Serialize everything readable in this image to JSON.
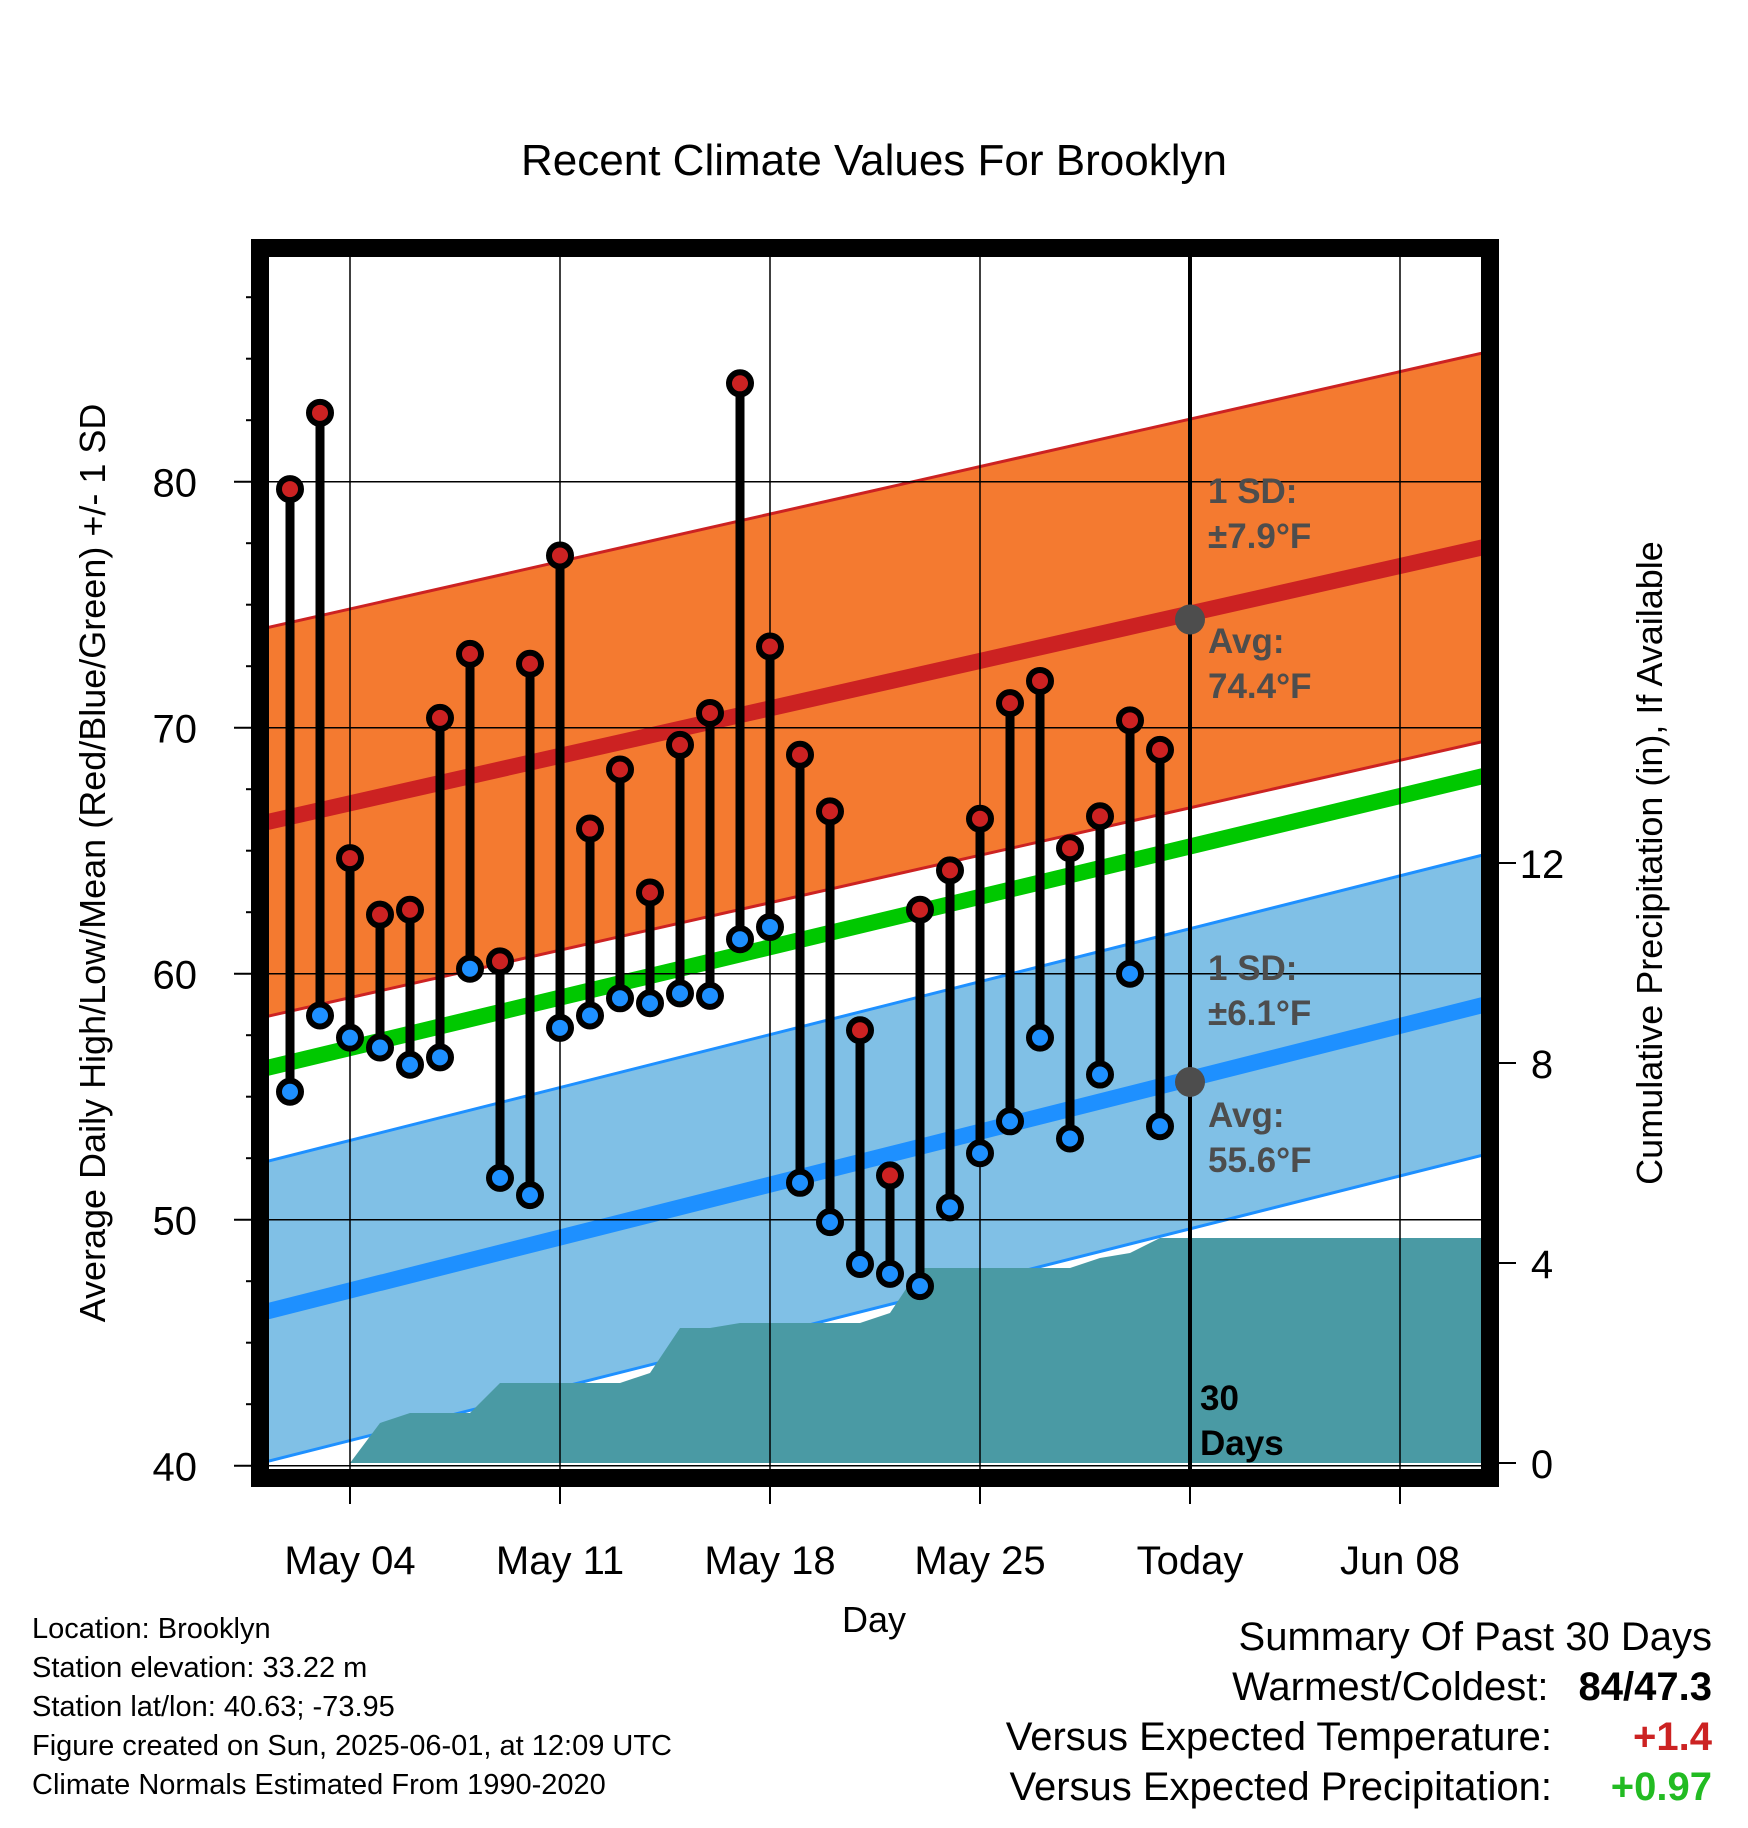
{
  "chart_data": {
    "type": "line",
    "title": "Recent Climate Values For Brooklyn",
    "xlabel": "Day",
    "ylabel": "Average Daily High/Low/Mean (Red/Blue/Green) +/- 1 SD",
    "y2label": "Cumulative Precipitation (in), If Available",
    "ylim": [
      39.5,
      89.5
    ],
    "y_ticks": [
      40,
      50,
      60,
      70,
      80
    ],
    "y2lim": [
      -0.3,
      24.3
    ],
    "y2_ticks": [
      0,
      4,
      8,
      12
    ],
    "x_tick_labels": [
      {
        "day": 3,
        "label": "May 04"
      },
      {
        "day": 10,
        "label": "May 11"
      },
      {
        "day": 17,
        "label": "May 18"
      },
      {
        "day": 24,
        "label": "May 25"
      },
      {
        "day": 31,
        "label": "Today"
      },
      {
        "day": 38,
        "label": "Jun 08"
      }
    ],
    "xlim": [
      0,
      41
    ],
    "grid": true,
    "today_day": 31,
    "observed_days": [
      1,
      2,
      3,
      4,
      5,
      6,
      7,
      8,
      9,
      10,
      11,
      12,
      13,
      14,
      15,
      16,
      17,
      18,
      19,
      20,
      21,
      22,
      23,
      24,
      25,
      26,
      27,
      28,
      29,
      30
    ],
    "observed_high": [
      79.7,
      82.8,
      64.7,
      62.4,
      62.6,
      70.4,
      73.0,
      60.5,
      72.6,
      77.0,
      65.9,
      68.3,
      63.3,
      69.3,
      70.6,
      84.0,
      73.3,
      68.9,
      66.6,
      57.7,
      51.8,
      62.6,
      64.2,
      66.3,
      71.0,
      71.9,
      65.1,
      66.4,
      70.3,
      69.1
    ],
    "observed_low": [
      55.2,
      58.3,
      57.4,
      57.0,
      56.3,
      56.6,
      60.2,
      51.7,
      51.0,
      57.8,
      58.3,
      59.0,
      58.8,
      59.2,
      59.1,
      61.4,
      61.9,
      51.5,
      49.9,
      48.2,
      47.8,
      47.3,
      50.5,
      52.7,
      54.0,
      57.4,
      53.3,
      55.9,
      60.0,
      53.8
    ],
    "normal_high": {
      "start": 66.1,
      "end": 77.4,
      "sd": 7.9,
      "color": "#cc2222",
      "band_color": "#f47a30"
    },
    "normal_low": {
      "start": 46.2,
      "end": 58.8,
      "sd": 6.1,
      "color": "#1e90ff",
      "band_color": "#80c0e6"
    },
    "normal_mean": {
      "start": 56.1,
      "end": 68.1,
      "color": "#00c800"
    },
    "cumulative_precip": {
      "color": "#4a9aa4",
      "days": [
        3,
        4,
        5,
        7,
        8,
        9,
        10,
        11,
        12,
        13,
        14,
        15,
        16,
        17,
        18,
        19,
        20,
        21,
        22,
        23,
        24,
        25,
        26,
        27,
        28,
        29,
        30,
        31
      ],
      "values": [
        0.0,
        0.8,
        1.0,
        1.0,
        1.6,
        1.6,
        1.6,
        1.6,
        1.6,
        1.8,
        2.7,
        2.7,
        2.8,
        2.8,
        2.8,
        2.8,
        2.8,
        3.0,
        3.9,
        3.9,
        3.9,
        3.9,
        3.9,
        3.9,
        4.1,
        4.2,
        4.5,
        4.5
      ]
    },
    "annotations": {
      "high_sd_line1": "1 SD:",
      "high_sd_line2": "±7.9°F",
      "high_avg_line1": "Avg:",
      "high_avg_line2": "74.4°F",
      "high_avg_value": 74.4,
      "low_sd_line1": "1 SD:",
      "low_sd_line2": "±6.1°F",
      "low_avg_line1": "Avg:",
      "low_avg_line2": "55.6°F",
      "low_avg_value": 55.6,
      "days_line1": "30",
      "days_line2": "Days"
    }
  },
  "info": {
    "location": "Location: Brooklyn",
    "elevation": "Station elevation: 33.22 m",
    "latlon": "Station lat/lon: 40.63; -73.95",
    "created": "Figure created on Sun, 2025-06-01, at 12:09 UTC",
    "normals": "Climate Normals Estimated From 1990-2020"
  },
  "summary": {
    "heading": "Summary Of Past 30 Days",
    "warm_cold_label": "Warmest/Coldest:",
    "warm_cold_value": "84/47.3",
    "temp_label": "Versus Expected Temperature:",
    "temp_value": "+1.4",
    "temp_color": "#cc2222",
    "precip_label": "Versus Expected Precipitation:",
    "precip_value": "+0.97",
    "precip_color": "#22bb22"
  }
}
